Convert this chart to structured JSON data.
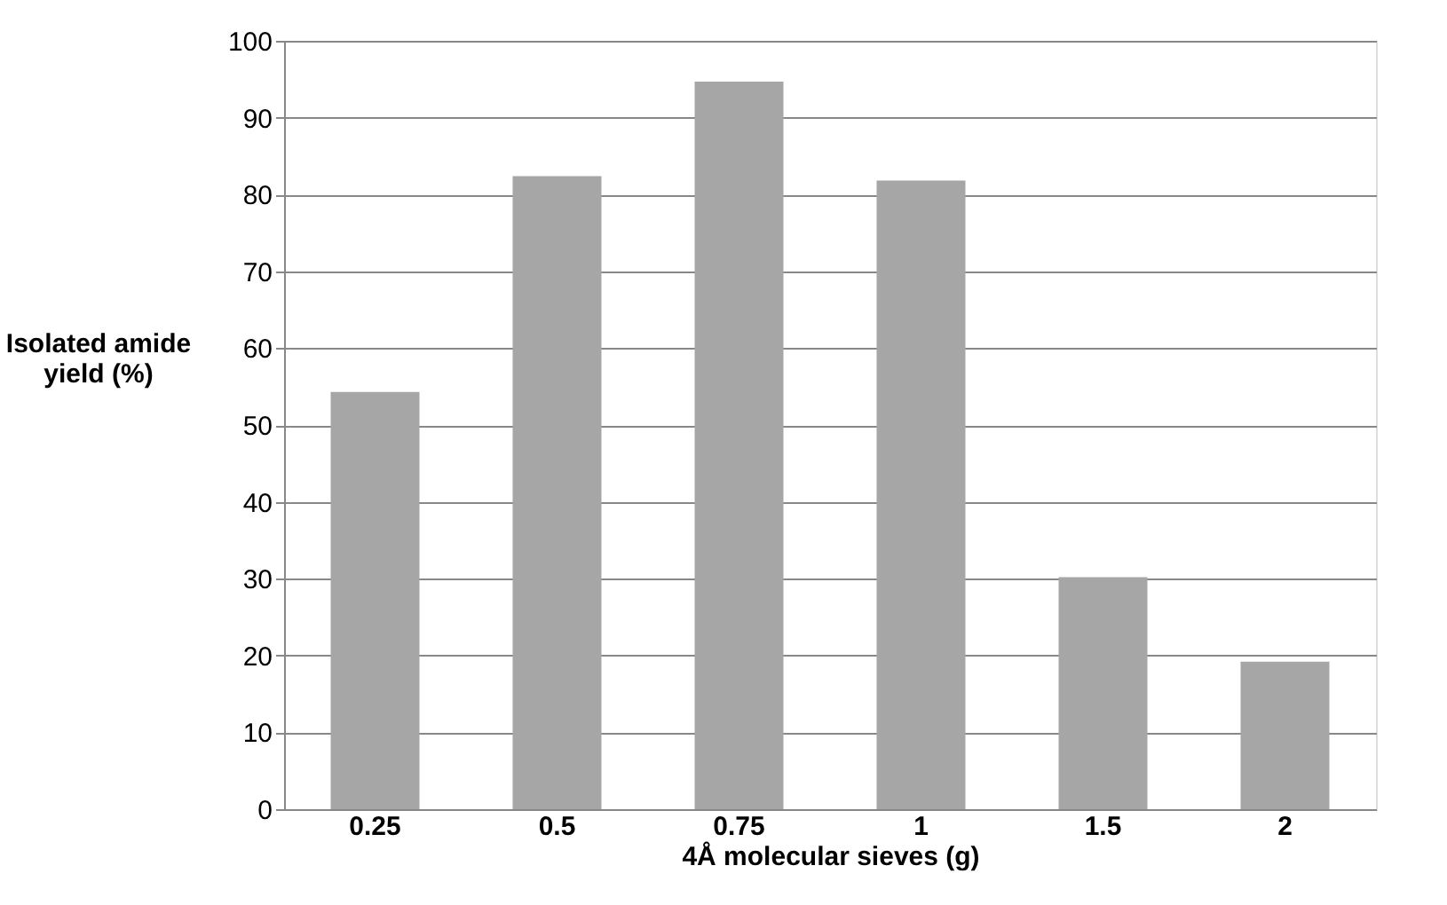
{
  "chart_data": {
    "type": "bar",
    "xlabel": "4Å molecular sieves (g)",
    "ylabel": "Isolated amide yield (%)",
    "categories": [
      "0.25",
      "0.5",
      "0.75",
      "1",
      "1.5",
      "2"
    ],
    "values": [
      54.3,
      82.4,
      94.7,
      81.8,
      30.2,
      19.2
    ],
    "color": "#a6a6a6",
    "ylim": [
      0,
      100
    ],
    "yticks": [
      0,
      10,
      20,
      30,
      40,
      50,
      60,
      70,
      80,
      90,
      100
    ],
    "grid": "y"
  }
}
